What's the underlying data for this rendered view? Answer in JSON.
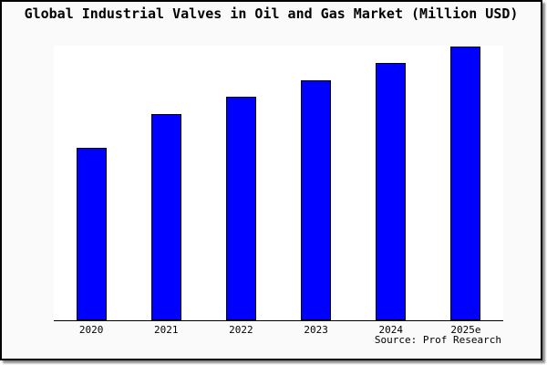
{
  "window": {
    "background": "#ffffff",
    "card_background": "#fafafa",
    "card_border_color": "#000000",
    "plot_background": "#ffffff",
    "axis_line_color": "#000000",
    "text_color": "#000000"
  },
  "chart_data": {
    "type": "bar",
    "title": "Global Industrial Valves in Oil and Gas Market (Million USD)",
    "categories": [
      "2020",
      "2021",
      "2022",
      "2023",
      "2024",
      "2025e"
    ],
    "values": [
      189,
      226,
      245,
      263,
      282,
      300
    ],
    "values_are_relative": true,
    "xlabel": "",
    "ylabel": "",
    "ylim": [
      0,
      301
    ],
    "grid": false,
    "legend": false,
    "y_axis_labels_visible": false,
    "bar_color": "#0000ff",
    "bar_border_color": "#000000",
    "source": "Source: Prof Research"
  }
}
